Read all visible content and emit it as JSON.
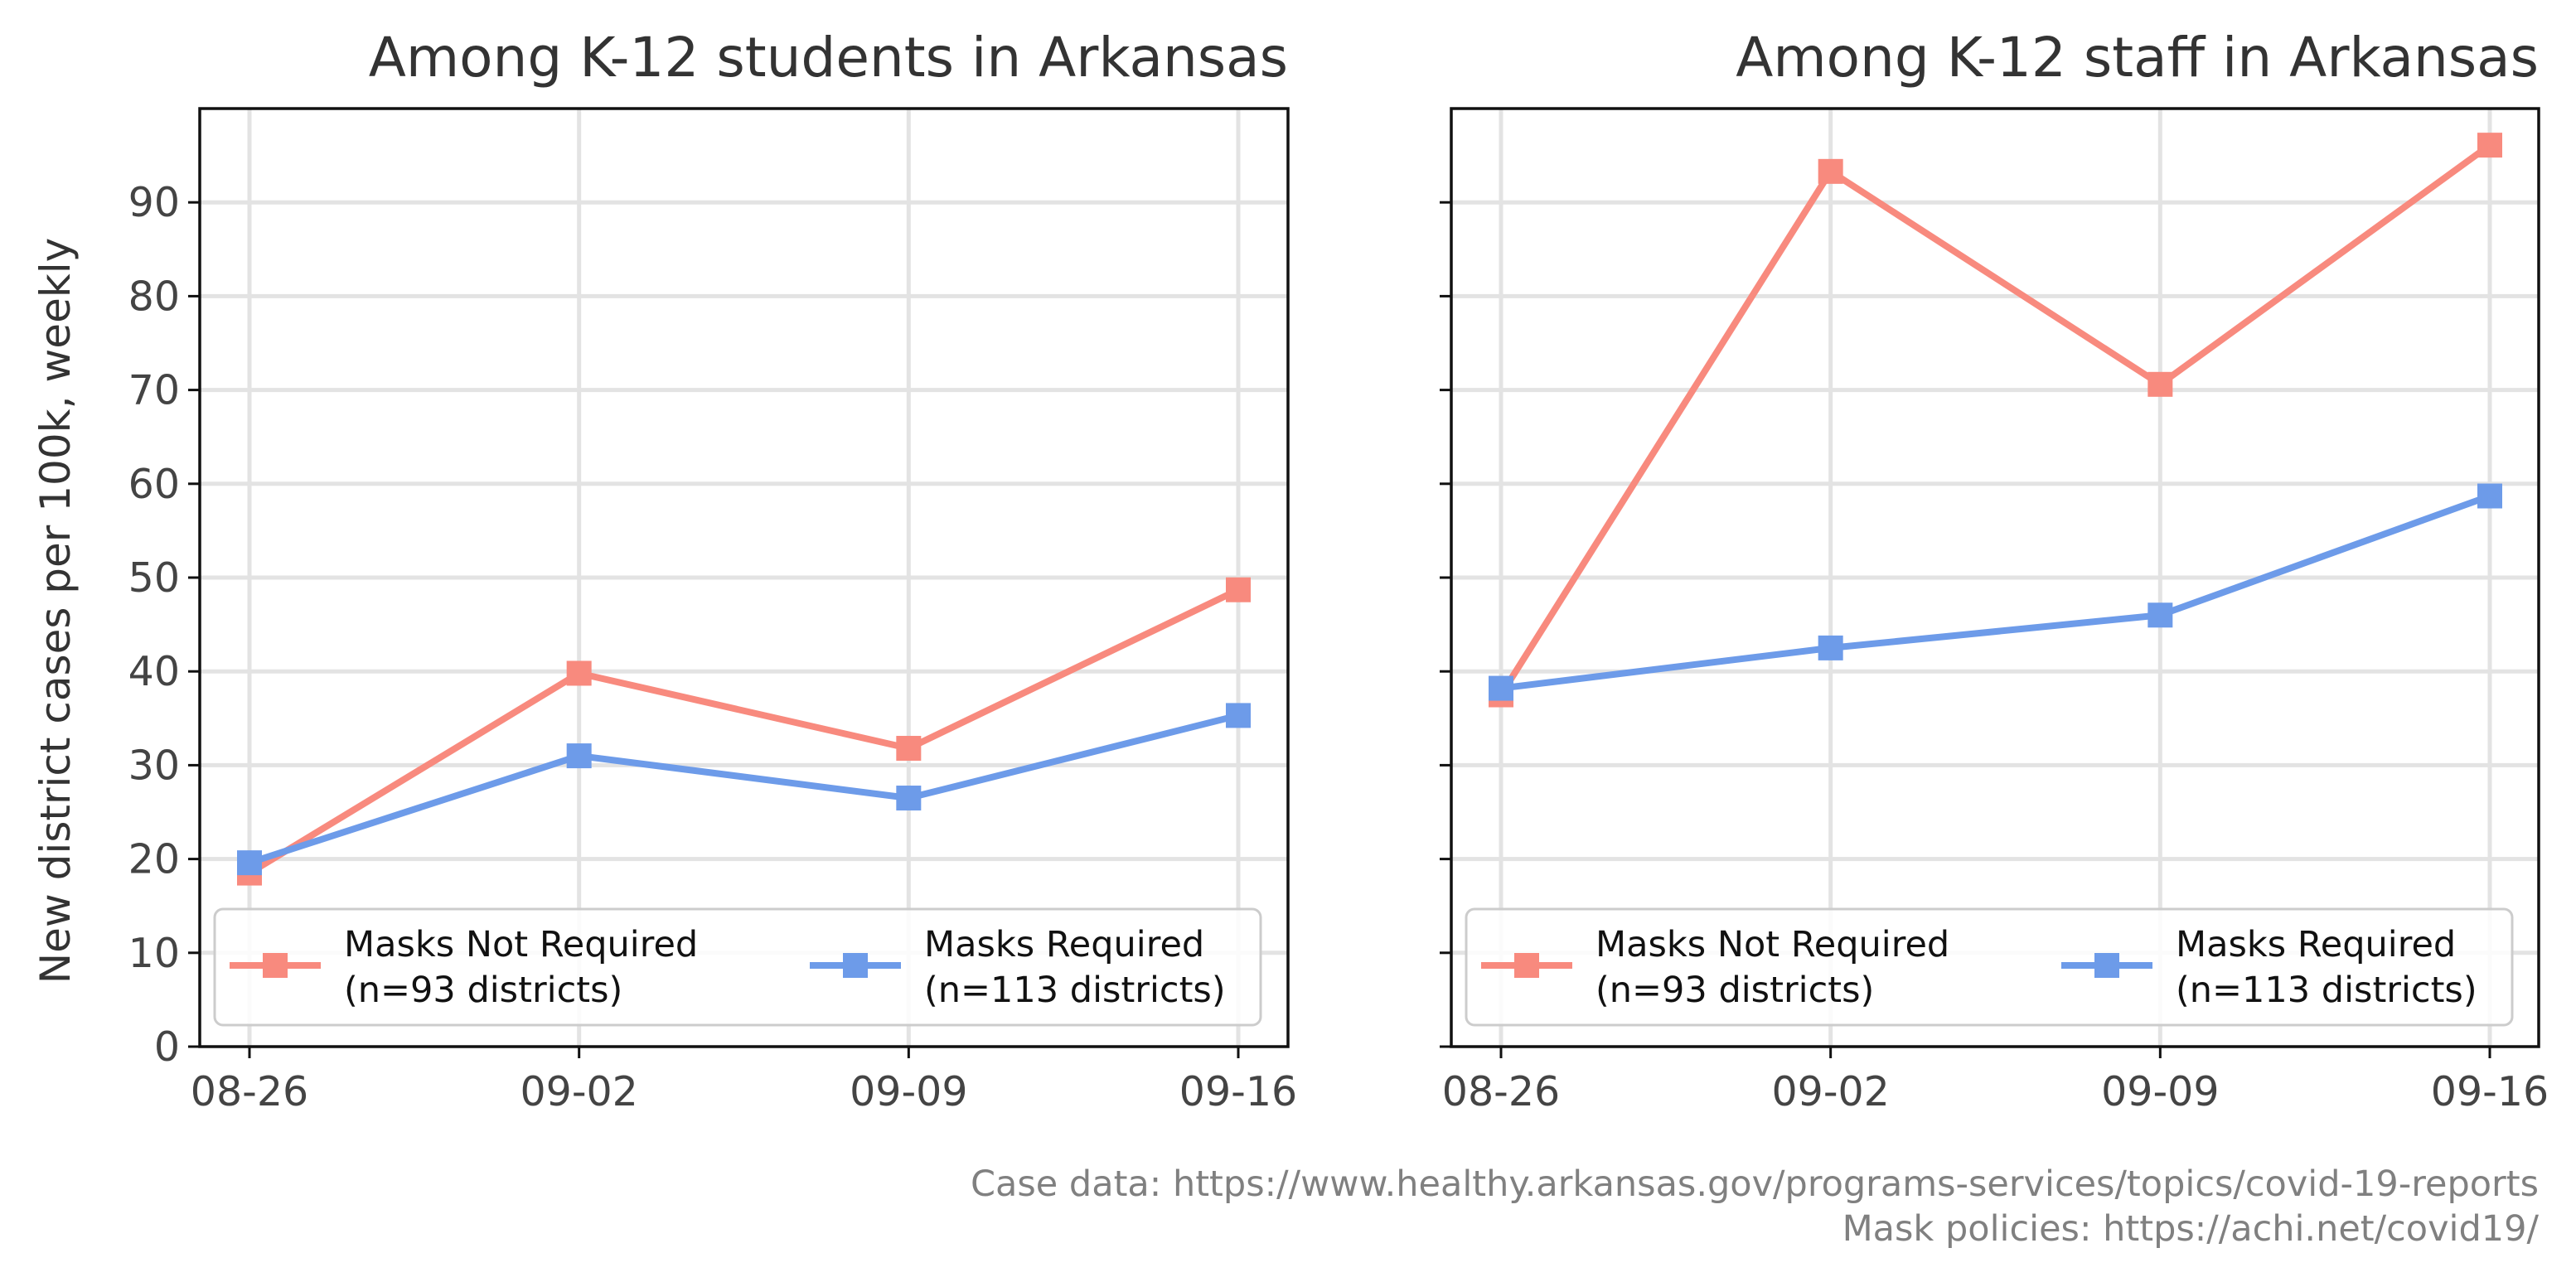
{
  "chart_data": [
    {
      "type": "line",
      "title": "Among K-12 students in Arkansas",
      "ylabel": "New district cases per 100k, weekly",
      "xlabel": "",
      "categories": [
        "08-26",
        "09-02",
        "09-09",
        "09-16"
      ],
      "ylim": [
        0,
        100
      ],
      "yticks": [
        0,
        10,
        20,
        30,
        40,
        50,
        60,
        70,
        80,
        90
      ],
      "grid": true,
      "legend_position": "lower center",
      "series": [
        {
          "name": "Masks Not Required",
          "name_line2": "(n=93 districts)",
          "color": "#f88a7e",
          "values": [
            18.5,
            39.8,
            31.8,
            48.7
          ]
        },
        {
          "name": "Masks Required",
          "name_line2": "(n=113 districts)",
          "color": "#6d9be9",
          "values": [
            19.6,
            31.0,
            26.5,
            35.3
          ]
        }
      ]
    },
    {
      "type": "line",
      "title": "Among K-12 staff in Arkansas",
      "ylabel": "",
      "xlabel": "",
      "categories": [
        "08-26",
        "09-02",
        "09-09",
        "09-16"
      ],
      "ylim": [
        0,
        100
      ],
      "yticks": [
        0,
        10,
        20,
        30,
        40,
        50,
        60,
        70,
        80,
        90
      ],
      "grid": true,
      "legend_position": "lower center",
      "series": [
        {
          "name": "Masks Not Required",
          "name_line2": "(n=93 districts)",
          "color": "#f88a7e",
          "values": [
            37.5,
            93.3,
            70.6,
            96.1
          ]
        },
        {
          "name": "Masks Required",
          "name_line2": "(n=113 districts)",
          "color": "#6d9be9",
          "values": [
            38.2,
            42.5,
            46.0,
            58.7
          ]
        }
      ]
    }
  ],
  "source": {
    "line1": "Case data: https://www.healthy.arkansas.gov/programs-services/topics/covid-19-reports",
    "line2": "Mask policies: https://achi.net/covid19/"
  }
}
